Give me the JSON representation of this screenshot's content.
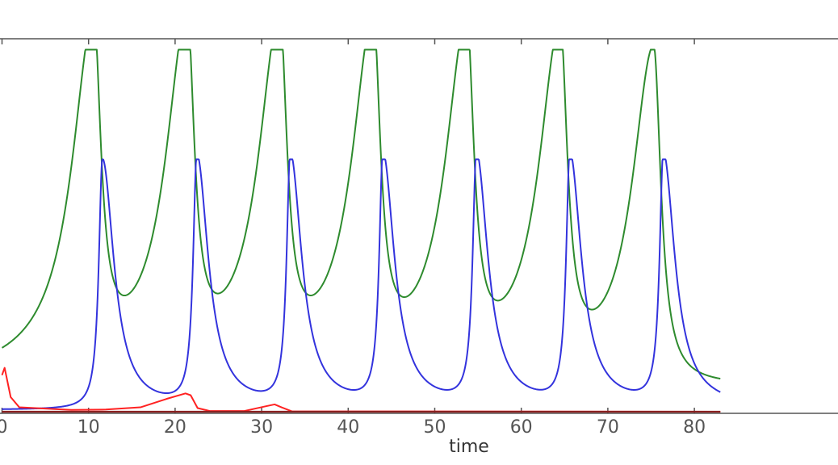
{
  "chart_data": {
    "type": "line",
    "title": "",
    "xlabel": "time",
    "ylabel": "",
    "xlim": [
      0,
      83
    ],
    "ylim": [
      0,
      1.0
    ],
    "grid": false,
    "legend": "none",
    "x_ticks": [
      0,
      10,
      20,
      30,
      40,
      50,
      60,
      70,
      80
    ],
    "x_tick_labels": [
      "0",
      "10",
      "20",
      "30",
      "40",
      "50",
      "60",
      "70",
      "80"
    ],
    "series": [
      {
        "color": "#2e8b2e",
        "kind": "pulse",
        "peak_times": [
          10.6,
          21.4,
          32.1,
          42.9,
          53.7,
          64.5,
          75.3
        ],
        "peak": 0.99,
        "baseline": 0.07,
        "rise": 3.0,
        "fall": 1.0
      },
      {
        "color": "#3333dd",
        "kind": "pulse",
        "peak_times": [
          11.6,
          22.5,
          33.3,
          44.0,
          54.8,
          65.6,
          76.4
        ],
        "peak": 0.69,
        "baseline": 0.005,
        "rise": 0.5,
        "fall": 1.6
      },
      {
        "color": "#ff2222",
        "kind": "low",
        "points": [
          [
            0,
            0.1
          ],
          [
            0.3,
            0.12
          ],
          [
            1.0,
            0.04
          ],
          [
            2.0,
            0.012
          ],
          [
            8,
            0.005
          ],
          [
            12,
            0.006
          ],
          [
            16,
            0.012
          ],
          [
            19,
            0.035
          ],
          [
            21.2,
            0.05
          ],
          [
            21.8,
            0.045
          ],
          [
            22.6,
            0.01
          ],
          [
            24,
            0.002
          ],
          [
            28,
            0.002
          ],
          [
            30.5,
            0.015
          ],
          [
            31.5,
            0.02
          ],
          [
            32.3,
            0.012
          ],
          [
            33.5,
            0.001
          ],
          [
            83,
            0.0
          ]
        ]
      },
      {
        "color": "#8b2020",
        "kind": "flat",
        "points": [
          [
            0,
            0.0
          ],
          [
            83,
            0.0
          ]
        ]
      }
    ]
  }
}
